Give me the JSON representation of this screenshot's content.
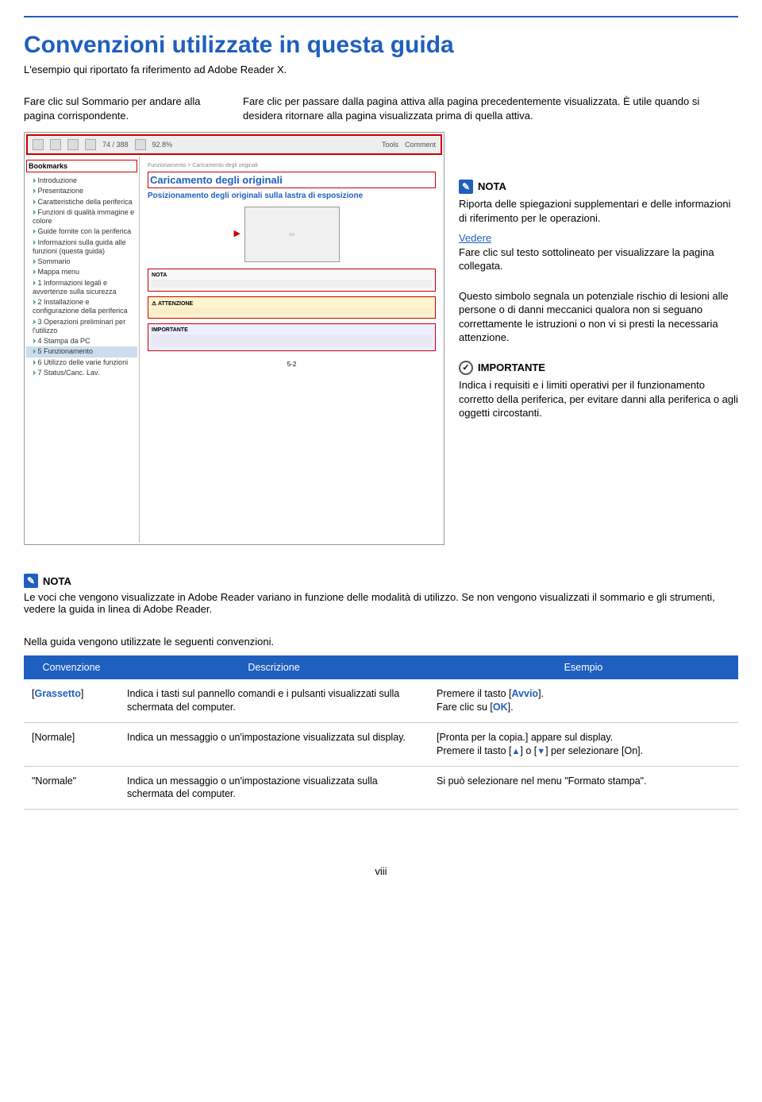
{
  "title": "Convenzioni utilizzate in questa guida",
  "subtitle": "L'esempio qui riportato fa riferimento ad Adobe Reader X.",
  "top_left": "Fare clic sul Sommario per andare alla pagina corrispondente.",
  "top_right": "Fare clic per passare dalla pagina attiva alla pagina precedentemente visualizzata. È utile quando si desidera ritornare alla pagina visualizzata prima di quella attiva.",
  "screenshot": {
    "toolbar": {
      "zoom": "92.8%",
      "tools": "Tools",
      "comment": "Comment",
      "page": "74 / 388"
    },
    "bookmarks_header": "Bookmarks",
    "bookmarks": [
      "Introduzione",
      "Presentazione",
      "Caratteristiche della periferica",
      "Funzioni di qualità immagine e colore",
      "Guide fornite con la periferica",
      "Informazioni sulla guida alle funzioni (questa guida)",
      "Sommario",
      "Mappa menu",
      "1 Informazioni legali e avvertenze sulla sicurezza",
      "2 Installazione e configurazione della periferica",
      "3 Operazioni preliminari per l'utilizzo",
      "4 Stampa da PC",
      "5 Funzionamento",
      "6 Utilizzo delle varie funzioni",
      "7 Status/Canc. Lav."
    ],
    "selected_bookmark": "5 Funzionamento",
    "content_breadcrumb": "Funzionamento > Caricamento degli originali",
    "content_title": "Caricamento degli originali",
    "content_sub": "Posizionamento degli originali sulla lastra di esposizione",
    "nota_label": "NOTA",
    "attenzione_label": "ATTENZIONE",
    "importante_label": "IMPORTANTE",
    "page_label": "5-2"
  },
  "callouts": {
    "nota": {
      "label": "NOTA",
      "text": "Riporta delle spiegazioni supplementari e delle informazioni di riferimento per le operazioni."
    },
    "vedere": {
      "label": "Vedere",
      "text": "Fare clic sul testo sottolineato per visualizzare la pagina collegata."
    },
    "warning": "Questo simbolo segnala un potenziale rischio di lesioni alle persone o di danni meccanici qualora non si seguano correttamente le istruzioni o non vi si presti la necessaria attenzione.",
    "importante": {
      "label": "IMPORTANTE",
      "text": "Indica i requisiti e i limiti operativi per il funzionamento corretto della periferica, per evitare danni alla periferica o agli oggetti circostanti."
    }
  },
  "bottom_nota": {
    "label": "NOTA",
    "text": "Le voci che vengono visualizzate in Adobe Reader variano in funzione delle modalità di utilizzo. Se non vengono visualizzati il sommario e gli strumenti, vedere la guida in linea di Adobe Reader."
  },
  "conv_intro": "Nella guida vengono utilizzate le seguenti convenzioni.",
  "table": {
    "headers": [
      "Convenzione",
      "Descrizione",
      "Esempio"
    ],
    "rows": [
      {
        "c1_pre": "[",
        "c1_bold": "Grassetto",
        "c1_post": "]",
        "c2": "Indica i tasti sul pannello comandi e i pulsanti visualizzati sulla schermata del computer.",
        "c3_l1_pre": "Premere il tasto [",
        "c3_l1_bold": "Avvio",
        "c3_l1_post": "].",
        "c3_l2_pre": "Fare clic su [",
        "c3_l2_bold": "OK",
        "c3_l2_post": "]."
      },
      {
        "c1": "[Normale]",
        "c2": "Indica un messaggio o un'impostazione visualizzata sul display.",
        "c3_l1": "[Pronta per la copia.] appare sul display.",
        "c3_l2_pre": "Premere il tasto [",
        "c3_l2_mid": "] o [",
        "c3_l2_post": "] per selezionare [On]."
      },
      {
        "c1": "\"Normale\"",
        "c2": "Indica un messaggio o un'impostazione visualizzata sulla schermata del computer.",
        "c3": "Si può selezionare nel menu \"Formato stampa\"."
      }
    ]
  },
  "page_number": "viii"
}
